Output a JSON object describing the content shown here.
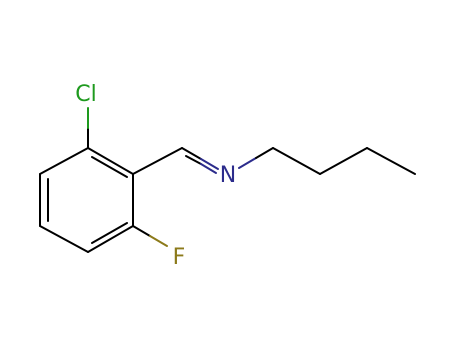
{
  "atoms": [
    {
      "label": "Cl"
    },
    {
      "label": "N"
    },
    {
      "label": "F"
    }
  ]
}
